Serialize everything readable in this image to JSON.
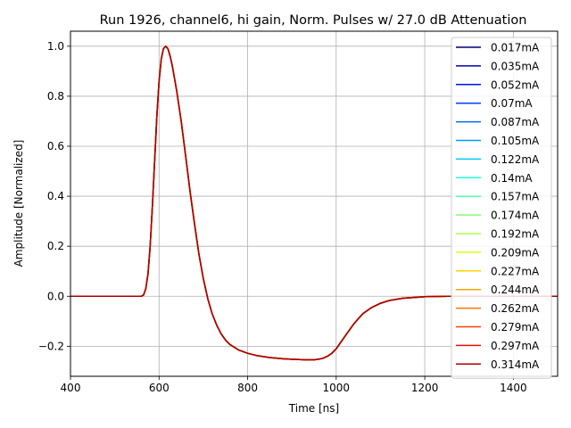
{
  "chart_data": {
    "type": "line",
    "title": "Run 1926, channel6, hi gain, Norm. Pulses w/ 27.0 dB Attenuation",
    "xlabel": "Time [ns]",
    "ylabel": "Amplitude [Normalized]",
    "xlim": [
      400,
      1500
    ],
    "ylim": [
      -0.32,
      1.06
    ],
    "xticks": [
      400,
      600,
      800,
      1000,
      1200,
      1400
    ],
    "yticks": [
      -0.2,
      0.0,
      0.2,
      0.4,
      0.6,
      0.8,
      1.0
    ],
    "grid": true,
    "legend_position": "right",
    "pulse_shape": {
      "x": [
        400,
        450,
        500,
        540,
        560,
        565,
        570,
        575,
        580,
        585,
        590,
        595,
        600,
        605,
        610,
        615,
        620,
        625,
        630,
        640,
        650,
        660,
        670,
        680,
        690,
        700,
        710,
        720,
        730,
        740,
        750,
        760,
        780,
        800,
        820,
        850,
        880,
        900,
        930,
        950,
        960,
        970,
        980,
        990,
        1000,
        1010,
        1020,
        1030,
        1040,
        1050,
        1060,
        1080,
        1100,
        1120,
        1150,
        1200,
        1250,
        1300,
        1400,
        1500
      ],
      "y": [
        0.0,
        0.0,
        0.0,
        0.0,
        0.0,
        0.005,
        0.03,
        0.09,
        0.2,
        0.36,
        0.54,
        0.72,
        0.86,
        0.95,
        0.99,
        1.0,
        0.99,
        0.96,
        0.92,
        0.82,
        0.7,
        0.56,
        0.42,
        0.29,
        0.17,
        0.07,
        -0.01,
        -0.07,
        -0.115,
        -0.15,
        -0.175,
        -0.193,
        -0.215,
        -0.228,
        -0.237,
        -0.245,
        -0.25,
        -0.252,
        -0.254,
        -0.254,
        -0.252,
        -0.248,
        -0.24,
        -0.228,
        -0.21,
        -0.185,
        -0.16,
        -0.135,
        -0.11,
        -0.09,
        -0.07,
        -0.045,
        -0.028,
        -0.017,
        -0.008,
        -0.002,
        0.0,
        0.0,
        0.0,
        0.0
      ]
    },
    "series": [
      {
        "name": "0.017mA",
        "color": "#00007f"
      },
      {
        "name": "0.035mA",
        "color": "#0000b2"
      },
      {
        "name": "0.052mA",
        "color": "#0010ee"
      },
      {
        "name": "0.07mA",
        "color": "#0040ff"
      },
      {
        "name": "0.087mA",
        "color": "#0068ff"
      },
      {
        "name": "0.105mA",
        "color": "#0098ff"
      },
      {
        "name": "0.122mA",
        "color": "#00c8ff"
      },
      {
        "name": "0.14mA",
        "color": "#1fffd7"
      },
      {
        "name": "0.157mA",
        "color": "#4dffaa"
      },
      {
        "name": "0.174mA",
        "color": "#81ff76"
      },
      {
        "name": "0.192mA",
        "color": "#aeff49"
      },
      {
        "name": "0.209mA",
        "color": "#dcff1a"
      },
      {
        "name": "0.227mA",
        "color": "#ffd200"
      },
      {
        "name": "0.244mA",
        "color": "#ffa600"
      },
      {
        "name": "0.262mA",
        "color": "#ff7600"
      },
      {
        "name": "0.279mA",
        "color": "#ff3f00"
      },
      {
        "name": "0.297mA",
        "color": "#ee1000"
      },
      {
        "name": "0.314mA",
        "color": "#a80000"
      }
    ]
  }
}
